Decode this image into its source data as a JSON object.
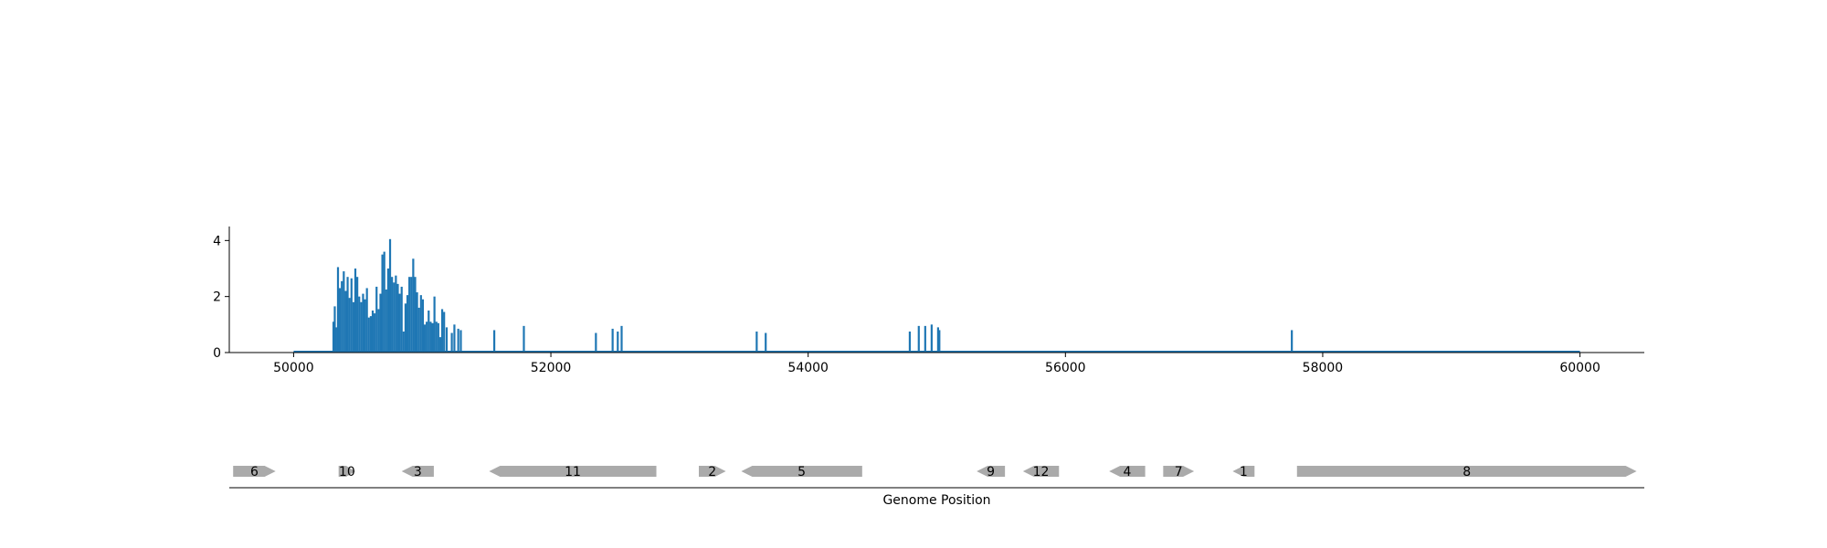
{
  "chart_data": [
    {
      "type": "bar",
      "title": "",
      "xlabel": "",
      "ylabel": "",
      "xlim": [
        49500,
        60500
      ],
      "ylim": [
        0,
        4.5
      ],
      "x_ticks": [
        50000,
        52000,
        54000,
        56000,
        58000,
        60000
      ],
      "y_ticks": [
        0,
        2,
        4
      ],
      "color": "#1f77b4",
      "baseline": [
        50000,
        60000
      ],
      "x": [
        50310,
        50320,
        50330,
        50345,
        50360,
        50375,
        50390,
        50405,
        50420,
        50435,
        50450,
        50465,
        50480,
        50495,
        50510,
        50525,
        50540,
        50555,
        50570,
        50585,
        50600,
        50615,
        50630,
        50645,
        50660,
        50675,
        50690,
        50705,
        50720,
        50735,
        50750,
        50765,
        50780,
        50795,
        50810,
        50825,
        50840,
        50855,
        50870,
        50885,
        50900,
        50915,
        50930,
        50945,
        50960,
        50975,
        50990,
        51005,
        51020,
        51035,
        51050,
        51065,
        51080,
        51095,
        51110,
        51125,
        51140,
        51155,
        51170,
        51190,
        51230,
        51250,
        51280,
        51300,
        51560,
        51790,
        52350,
        52480,
        52520,
        52550,
        53600,
        53670,
        54790,
        54860,
        54910,
        54960,
        55010,
        55020,
        57760
      ],
      "values": [
        1.1,
        1.65,
        0.9,
        3.05,
        2.3,
        2.55,
        2.9,
        2.2,
        2.7,
        1.95,
        2.65,
        1.8,
        3.0,
        2.7,
        2.0,
        1.8,
        2.1,
        1.9,
        2.3,
        1.25,
        1.3,
        1.5,
        1.4,
        2.35,
        1.55,
        2.1,
        3.5,
        3.6,
        2.25,
        3.0,
        4.05,
        2.7,
        2.5,
        2.75,
        2.45,
        2.1,
        2.35,
        0.75,
        1.75,
        2.05,
        2.7,
        2.7,
        3.35,
        2.7,
        2.15,
        1.6,
        2.05,
        1.9,
        1.0,
        1.1,
        1.5,
        1.1,
        1.05,
        2.0,
        1.1,
        1.05,
        0.55,
        1.55,
        1.45,
        0.9,
        0.7,
        1.0,
        0.85,
        0.8,
        0.8,
        0.95,
        0.7,
        0.85,
        0.75,
        0.95,
        0.75,
        0.7,
        0.75,
        0.95,
        0.95,
        1.0,
        0.9,
        0.8,
        0.8
      ]
    },
    {
      "type": "gene-map",
      "xlabel": "Genome Position",
      "xlim": [
        49500,
        60500
      ],
      "color": "#aaaaaa",
      "genes": [
        {
          "label": "6",
          "start": 49530,
          "end": 49860,
          "strand": 1
        },
        {
          "label": "10",
          "start": 50350,
          "end": 50480,
          "strand": 1
        },
        {
          "label": "3",
          "start": 50840,
          "end": 51090,
          "strand": -1
        },
        {
          "label": "11",
          "start": 51520,
          "end": 52820,
          "strand": -1
        },
        {
          "label": "2",
          "start": 53150,
          "end": 53360,
          "strand": 1
        },
        {
          "label": "5",
          "start": 53480,
          "end": 54420,
          "strand": -1
        },
        {
          "label": "9",
          "start": 55310,
          "end": 55530,
          "strand": -1
        },
        {
          "label": "12",
          "start": 55670,
          "end": 55950,
          "strand": -1
        },
        {
          "label": "4",
          "start": 56340,
          "end": 56620,
          "strand": -1
        },
        {
          "label": "7",
          "start": 56760,
          "end": 57000,
          "strand": 1
        },
        {
          "label": "1",
          "start": 57300,
          "end": 57470,
          "strand": -1
        },
        {
          "label": "8",
          "start": 57800,
          "end": 60440,
          "strand": 1
        }
      ]
    }
  ]
}
